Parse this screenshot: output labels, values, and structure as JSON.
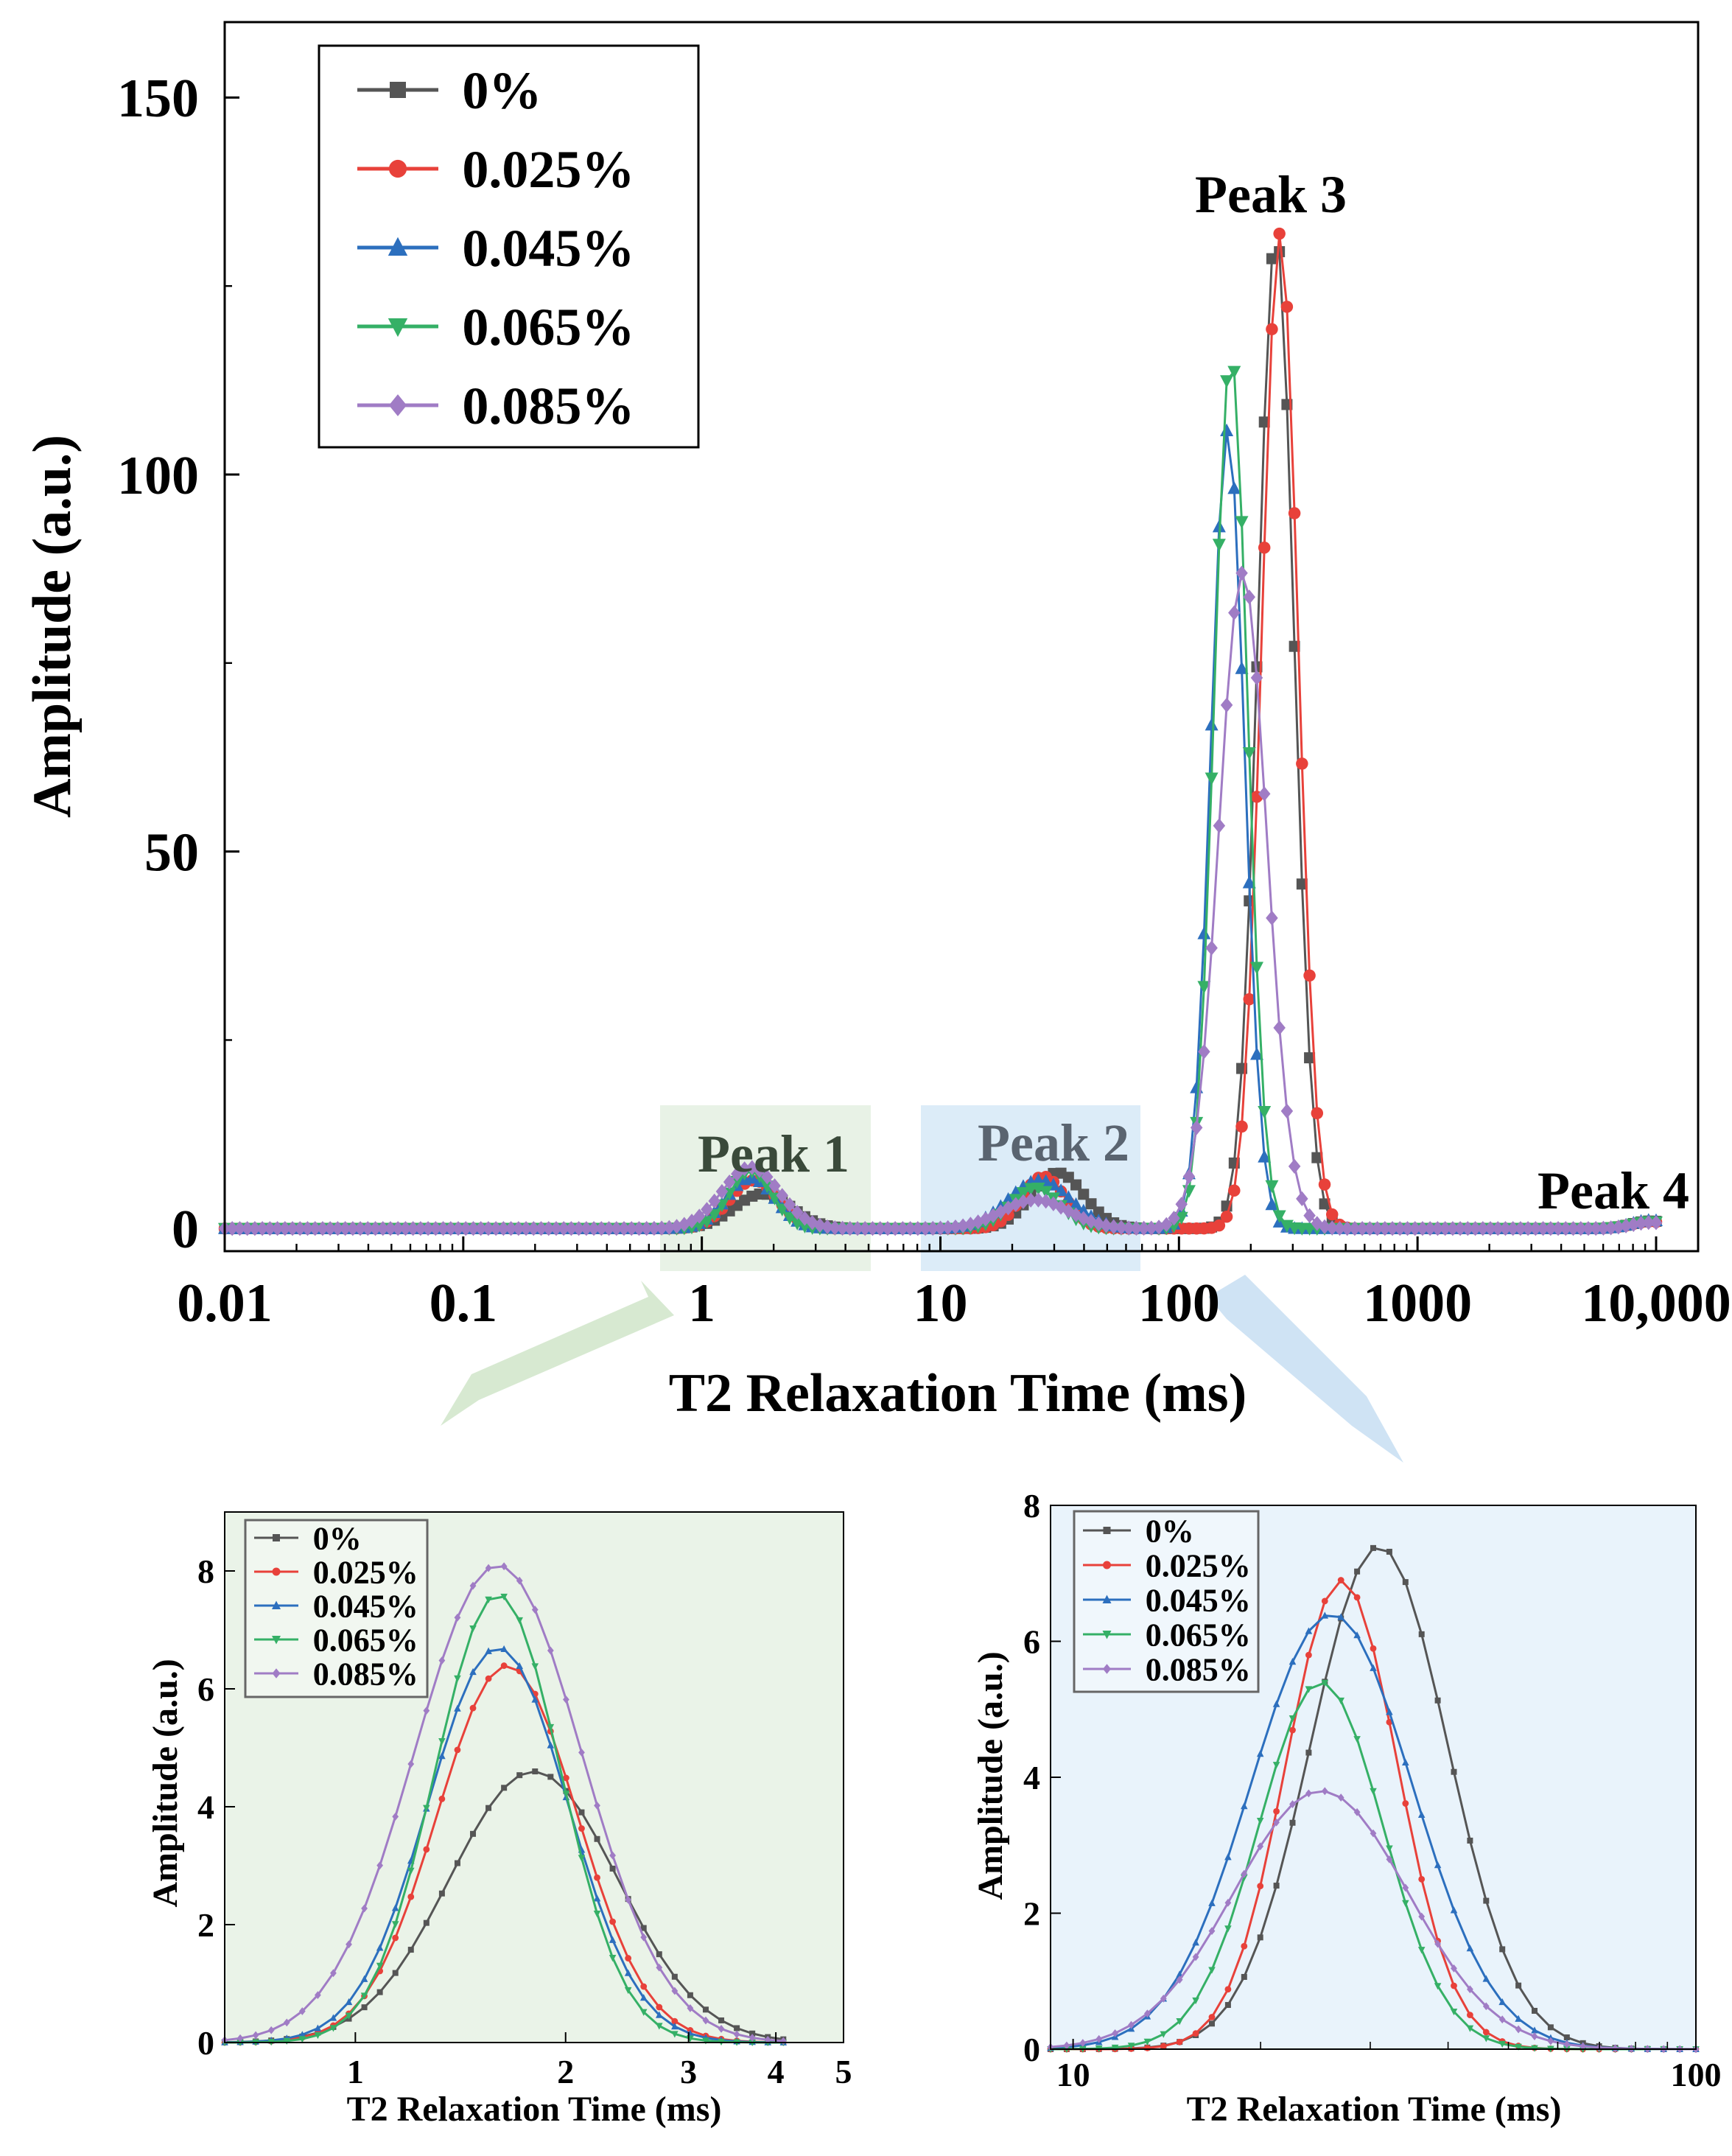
{
  "colors": {
    "s0": "#555555",
    "s1": "#e8413a",
    "s2": "#2c6fbe",
    "s3": "#35b066",
    "s4": "#a07cc5",
    "green_shade": "#e8f2e6",
    "blue_shade": "#dcecf8",
    "green_arrow": "#d9ead3",
    "blue_arrow": "#cfe3f4"
  },
  "legend": [
    "0%",
    "0.025%",
    "0.045%",
    "0.065%",
    "0.085%"
  ],
  "annotations": {
    "peak1": "Peak 1",
    "peak2": "Peak 2",
    "peak3": "Peak 3",
    "peak4": "Peak 4"
  },
  "chart_data": [
    {
      "id": "main",
      "type": "line",
      "xscale": "log",
      "xlabel": "T2 Relaxation Time (ms)",
      "ylabel": "Amplitude (a.u.)",
      "xlim": [
        0.01,
        15000
      ],
      "ylim": [
        -3,
        160
      ],
      "xticks": [
        0.01,
        0.1,
        1,
        10,
        100,
        1000,
        10000
      ],
      "xtick_labels": [
        "0.01",
        "0.1",
        "1",
        "10",
        "100",
        "1000",
        "10,000"
      ],
      "yticks": [
        0,
        50,
        100,
        150
      ],
      "ytick_labels": [
        "0",
        "50",
        "100",
        "150"
      ],
      "legend_position": "top-left",
      "series": [
        {
          "name": "0%",
          "peaks": [
            {
              "center": 1.8,
              "amp": 4.6,
              "width": 0.12
            },
            {
              "center": 31,
              "amp": 7.4,
              "width": 0.11
            },
            {
              "center": 255,
              "amp": 132,
              "width": 0.075
            },
            {
              "center": 9500,
              "amp": 1.0,
              "width": 0.08
            }
          ]
        },
        {
          "name": "0.025%",
          "peaks": [
            {
              "center": 1.65,
              "amp": 6.4,
              "width": 0.1
            },
            {
              "center": 27,
              "amp": 6.9,
              "width": 0.09
            },
            {
              "center": 265,
              "amp": 132,
              "width": 0.075
            },
            {
              "center": 9500,
              "amp": 0.9,
              "width": 0.08
            }
          ]
        },
        {
          "name": "0.045%",
          "peaks": [
            {
              "center": 1.6,
              "amp": 6.7,
              "width": 0.1
            },
            {
              "center": 26,
              "amp": 6.4,
              "width": 0.13
            },
            {
              "center": 160,
              "amp": 106,
              "width": 0.07
            },
            {
              "center": 9500,
              "amp": 1.1,
              "width": 0.08
            }
          ]
        },
        {
          "name": "0.065%",
          "peaks": [
            {
              "center": 1.6,
              "amp": 7.6,
              "width": 0.09
            },
            {
              "center": 25,
              "amp": 5.4,
              "width": 0.1
            },
            {
              "center": 165,
              "amp": 116,
              "width": 0.07
            },
            {
              "center": 9500,
              "amp": 0.9,
              "width": 0.08
            }
          ]
        },
        {
          "name": "0.085%",
          "peaks": [
            {
              "center": 1.6,
              "amp": 8.1,
              "width": 0.12
            },
            {
              "center": 25,
              "amp": 3.8,
              "width": 0.14
            },
            {
              "center": 185,
              "amp": 87,
              "width": 0.1
            },
            {
              "center": 9500,
              "amp": 0.8,
              "width": 0.08
            }
          ]
        }
      ]
    },
    {
      "id": "inset1",
      "type": "line",
      "xscale": "log",
      "xlabel": "T2 Relaxation Time (ms)",
      "ylabel": "Amplitude (a.u.)",
      "xlim": [
        0.65,
        5
      ],
      "ylim": [
        0,
        9
      ],
      "xticks": [
        1,
        2,
        3,
        4,
        5
      ],
      "xtick_labels": [
        "1",
        "2",
        "3",
        "4",
        "5"
      ],
      "yticks": [
        0,
        2,
        4,
        6,
        8
      ],
      "ytick_labels": [
        "0",
        "2",
        "4",
        "6",
        "8"
      ],
      "legend_position": "top-left",
      "series": [
        {
          "name": "0%",
          "center": 1.8,
          "amp": 4.6,
          "width": 0.12
        },
        {
          "name": "0.025%",
          "center": 1.65,
          "amp": 6.4,
          "width": 0.1
        },
        {
          "name": "0.045%",
          "center": 1.6,
          "amp": 6.7,
          "width": 0.1
        },
        {
          "name": "0.065%",
          "center": 1.6,
          "amp": 7.6,
          "width": 0.09
        },
        {
          "name": "0.085%",
          "center": 1.6,
          "amp": 8.1,
          "width": 0.12
        }
      ]
    },
    {
      "id": "inset2",
      "type": "line",
      "xscale": "log",
      "xlabel": "T2 Relaxation Time (ms)",
      "ylabel": "Amplitude (a.u.)",
      "xlim": [
        9.2,
        100
      ],
      "ylim": [
        0,
        8
      ],
      "xticks": [
        10,
        100
      ],
      "xtick_labels": [
        "10",
        "100"
      ],
      "yticks": [
        0,
        2,
        4,
        6,
        8
      ],
      "ytick_labels": [
        "0",
        "2",
        "4",
        "6",
        "8"
      ],
      "legend_position": "top-left",
      "series": [
        {
          "name": "0%",
          "center": 31,
          "amp": 7.4,
          "width": 0.11
        },
        {
          "name": "0.025%",
          "center": 27,
          "amp": 6.9,
          "width": 0.09
        },
        {
          "name": "0.045%",
          "center": 26,
          "amp": 6.4,
          "width": 0.13
        },
        {
          "name": "0.065%",
          "center": 25,
          "amp": 5.4,
          "width": 0.1
        },
        {
          "name": "0.085%",
          "center": 25,
          "amp": 3.8,
          "width": 0.14
        }
      ]
    }
  ]
}
